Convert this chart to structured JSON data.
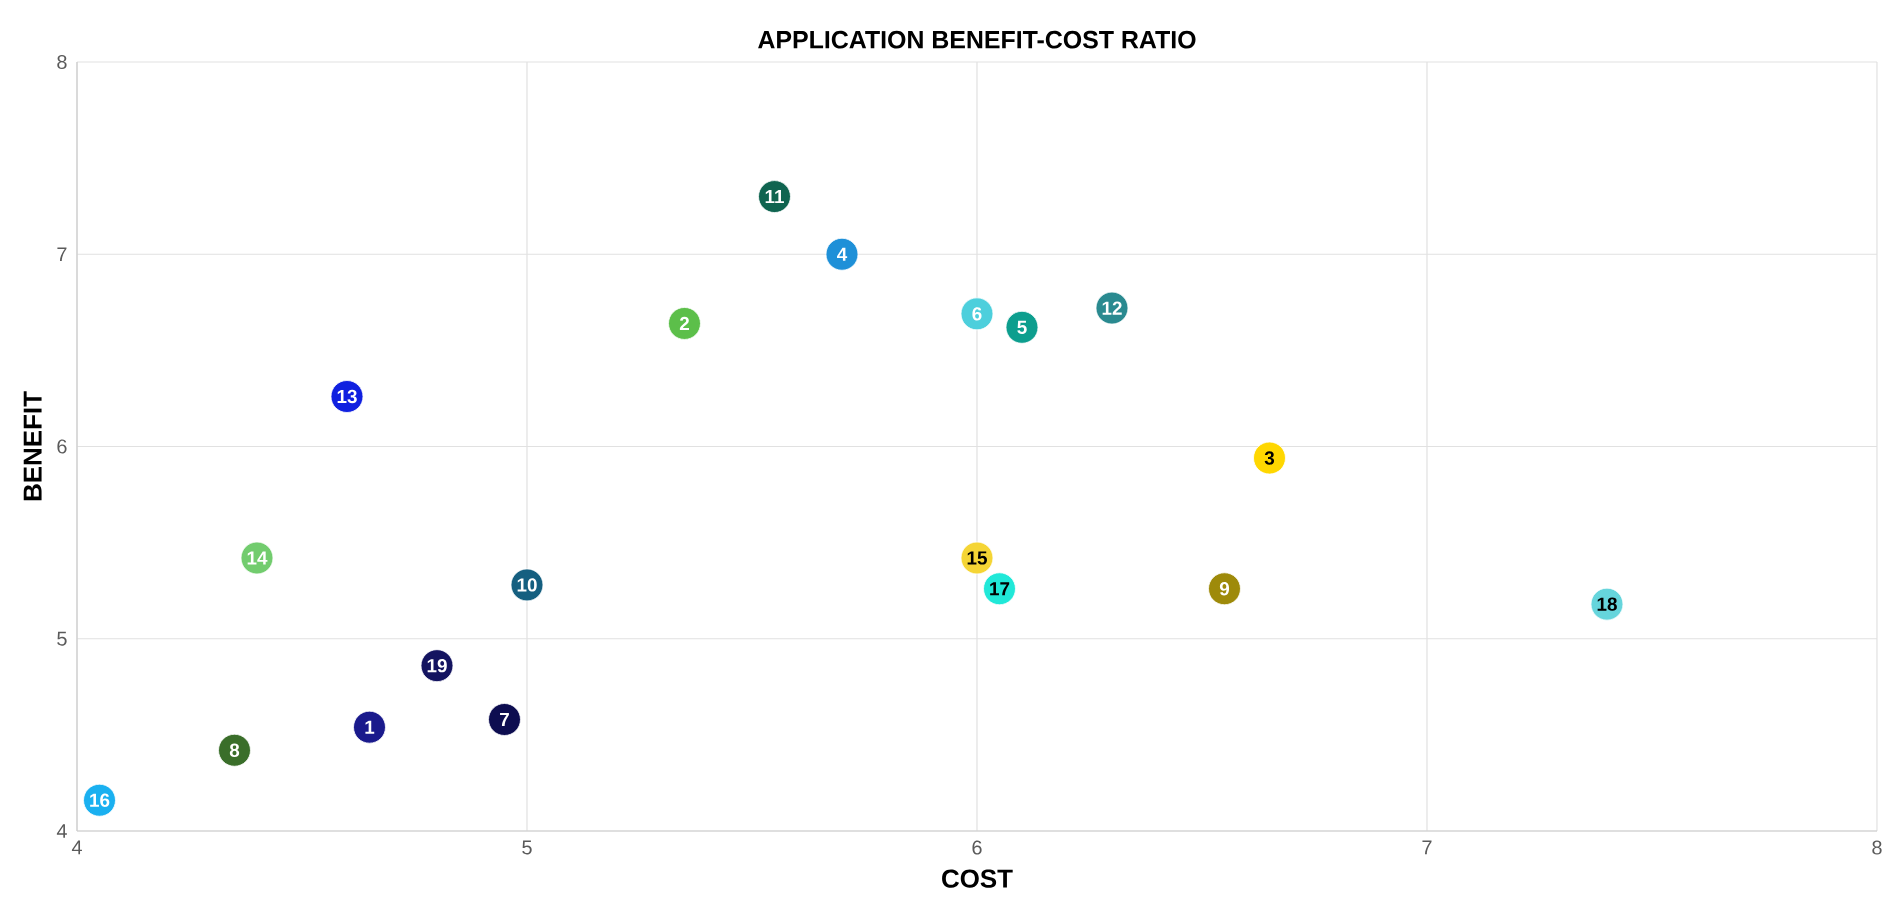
{
  "chart_data": {
    "type": "scatter",
    "title": "APPLICATION BENEFIT-COST RATIO",
    "xlabel": "COST",
    "ylabel": "BENEFIT",
    "xlim": [
      4,
      8
    ],
    "ylim": [
      4,
      8
    ],
    "xticks": [
      4,
      5,
      6,
      7,
      8
    ],
    "yticks": [
      4,
      5,
      6,
      7,
      8
    ],
    "grid": true,
    "marker": "circle",
    "series": [
      {
        "name": "1",
        "color": "#1a1a8c",
        "x": [
          4.65
        ],
        "values": [
          4.54
        ]
      },
      {
        "name": "2",
        "color": "#5cbf4a",
        "x": [
          5.35
        ],
        "values": [
          6.64
        ]
      },
      {
        "name": "3",
        "color": "#ffd700",
        "x": [
          6.65
        ],
        "values": [
          5.94
        ]
      },
      {
        "name": "4",
        "color": "#1e90d8",
        "x": [
          5.7
        ],
        "values": [
          7.0
        ]
      },
      {
        "name": "5",
        "color": "#0d9e8e",
        "x": [
          6.1
        ],
        "values": [
          6.62
        ]
      },
      {
        "name": "6",
        "color": "#4dcfdc",
        "x": [
          6.0
        ],
        "values": [
          6.69
        ]
      },
      {
        "name": "7",
        "color": "#0d0d50",
        "x": [
          4.95
        ],
        "values": [
          4.58
        ]
      },
      {
        "name": "8",
        "color": "#3a6e2a",
        "x": [
          4.35
        ],
        "values": [
          4.42
        ]
      },
      {
        "name": "9",
        "color": "#9e8a0a",
        "x": [
          6.55
        ],
        "values": [
          5.26
        ]
      },
      {
        "name": "10",
        "color": "#155f80",
        "x": [
          5.0
        ],
        "values": [
          5.28
        ]
      },
      {
        "name": "11",
        "color": "#0f6450",
        "x": [
          5.55
        ],
        "values": [
          7.3
        ]
      },
      {
        "name": "12",
        "color": "#2a8a90",
        "x": [
          6.3
        ],
        "values": [
          6.72
        ]
      },
      {
        "name": "13",
        "color": "#1020e0",
        "x": [
          4.6
        ],
        "values": [
          6.26
        ]
      },
      {
        "name": "14",
        "color": "#72cc6e",
        "x": [
          4.4
        ],
        "values": [
          5.42
        ]
      },
      {
        "name": "15",
        "color": "#f5d535",
        "x": [
          6.0
        ],
        "values": [
          5.42
        ]
      },
      {
        "name": "16",
        "color": "#1ab0f0",
        "x": [
          4.05
        ],
        "values": [
          4.16
        ]
      },
      {
        "name": "17",
        "color": "#20e8d8",
        "x": [
          6.05
        ],
        "values": [
          5.26
        ]
      },
      {
        "name": "18",
        "color": "#66d5dc",
        "x": [
          7.4
        ],
        "values": [
          5.18
        ]
      },
      {
        "name": "19",
        "color": "#141460",
        "x": [
          4.8
        ],
        "values": [
          4.86
        ]
      }
    ]
  }
}
